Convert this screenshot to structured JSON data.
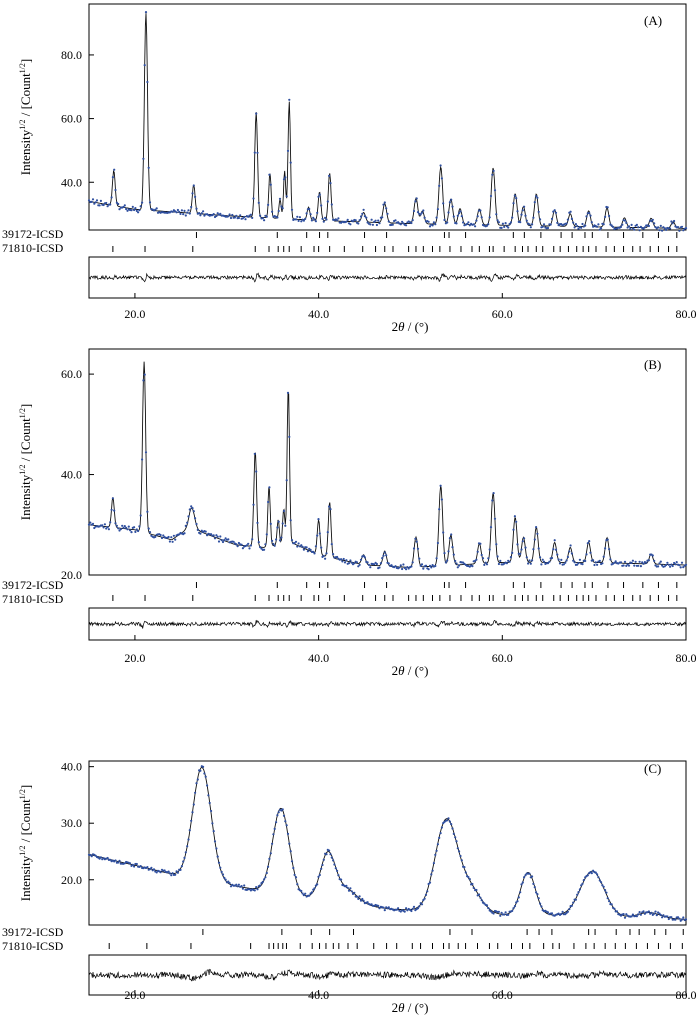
{
  "chart_data": [
    {
      "type": "line",
      "panel_label": "(A)",
      "ylabel_main": "Intensity",
      "ylabel_sup1": "1/2",
      "ylabel_mid": " / [Count",
      "ylabel_sup2": "1/2",
      "ylabel_end": "]",
      "xlabel_theta_prefix": "2",
      "xlabel_theta": "θ",
      "xlabel_unit": " / (°)",
      "xlim": [
        15,
        80
      ],
      "ylim": [
        25,
        96
      ],
      "yticks": [
        40.0,
        60.0,
        80.0
      ],
      "ytick_labels": [
        "40.0",
        "60.0",
        "80.0"
      ],
      "xticks": [
        20,
        40,
        60,
        80
      ],
      "xtick_labels": [
        "20.0",
        "40.0",
        "60.0",
        "80.0"
      ],
      "baseline": [
        [
          15,
          34
        ],
        [
          20,
          31.5
        ],
        [
          25,
          30.5
        ],
        [
          30,
          29.5
        ],
        [
          40,
          28
        ],
        [
          50,
          27
        ],
        [
          60,
          26.5
        ],
        [
          70,
          26
        ],
        [
          80,
          25.5
        ]
      ],
      "peaks": [
        [
          17.7,
          11,
          0.15
        ],
        [
          21.2,
          62,
          0.17
        ],
        [
          26.4,
          9,
          0.15
        ],
        [
          33.2,
          33,
          0.15
        ],
        [
          34.7,
          14,
          0.13
        ],
        [
          35.8,
          6,
          0.12
        ],
        [
          36.3,
          15,
          0.12
        ],
        [
          36.8,
          37,
          0.13
        ],
        [
          38.9,
          4,
          0.15
        ],
        [
          40.1,
          9,
          0.15
        ],
        [
          41.2,
          15,
          0.15
        ],
        [
          44.9,
          3,
          0.2
        ],
        [
          47.2,
          6,
          0.2
        ],
        [
          50.6,
          8,
          0.2
        ],
        [
          51.3,
          4,
          0.2
        ],
        [
          53.3,
          18,
          0.2
        ],
        [
          54.4,
          8,
          0.2
        ],
        [
          55.4,
          5,
          0.2
        ],
        [
          57.5,
          5,
          0.2
        ],
        [
          59.0,
          18,
          0.2
        ],
        [
          61.4,
          10,
          0.2
        ],
        [
          62.3,
          6,
          0.2
        ],
        [
          63.7,
          10,
          0.2
        ],
        [
          65.7,
          5,
          0.2
        ],
        [
          67.4,
          4,
          0.2
        ],
        [
          69.4,
          5,
          0.2
        ],
        [
          71.4,
          6,
          0.2
        ],
        [
          73.3,
          3,
          0.2
        ],
        [
          76.2,
          3,
          0.2
        ],
        [
          78.6,
          2,
          0.2
        ]
      ],
      "phases": [
        {
          "name": "39172-ICSD",
          "positions": [
            26.7,
            35.5,
            38.7,
            40.1,
            41.0,
            45.0,
            47.4,
            53.7,
            54.2,
            56.0,
            61.2,
            62.4,
            64.2,
            66.4,
            67.6,
            69.0,
            69.8,
            71.5,
            73.2,
            75.3,
            77.0,
            79.0
          ]
        },
        {
          "name": "71810-ICSD",
          "positions": [
            17.6,
            21.1,
            26.3,
            33.1,
            34.6,
            35.6,
            36.2,
            36.8,
            38.1,
            39.5,
            40.0,
            41.2,
            42.8,
            44.8,
            46.2,
            47.2,
            48.1,
            49.8,
            50.6,
            51.4,
            52.4,
            53.2,
            54.3,
            55.5,
            56.7,
            57.5,
            58.6,
            59.0,
            60.2,
            61.4,
            62.2,
            62.8,
            63.7,
            64.4,
            65.6,
            66.3,
            67.2,
            68.1,
            68.8,
            69.4,
            70.2,
            71.3,
            72.2,
            73.2,
            74.2,
            75.0,
            76.1,
            77.0,
            78.1,
            79.0
          ]
        }
      ]
    },
    {
      "type": "line",
      "panel_label": "(B)",
      "ylabel_main": "Intensity",
      "ylabel_sup1": "1/2",
      "ylabel_mid": " / [Count",
      "ylabel_sup2": "1/2",
      "ylabel_end": "]",
      "xlabel_theta_prefix": "2",
      "xlabel_theta": "θ",
      "xlabel_unit": " / (°)",
      "xlim": [
        15,
        80
      ],
      "ylim": [
        20,
        65
      ],
      "yticks": [
        20.0,
        40.0,
        60.0
      ],
      "ytick_labels": [
        "20.0",
        "40.0",
        "60.0"
      ],
      "xticks": [
        20,
        40,
        60,
        80
      ],
      "xtick_labels": [
        "20.0",
        "40.0",
        "60.0",
        "80.0"
      ],
      "baseline": [
        [
          15,
          30
        ],
        [
          20,
          29
        ],
        [
          24,
          27
        ],
        [
          26,
          29.5
        ],
        [
          28,
          28
        ],
        [
          31,
          26
        ],
        [
          34,
          25.5
        ],
        [
          37,
          26.5
        ],
        [
          40,
          24
        ],
        [
          45,
          22
        ],
        [
          50,
          21.5
        ],
        [
          55,
          22
        ],
        [
          60,
          22.5
        ],
        [
          70,
          22.5
        ],
        [
          80,
          22
        ]
      ],
      "peaks": [
        [
          17.6,
          6,
          0.15
        ],
        [
          21.0,
          34,
          0.17
        ],
        [
          26.2,
          4,
          0.3
        ],
        [
          33.1,
          19,
          0.15
        ],
        [
          34.6,
          12,
          0.13
        ],
        [
          35.6,
          5,
          0.12
        ],
        [
          36.2,
          7,
          0.12
        ],
        [
          36.7,
          31,
          0.13
        ],
        [
          40.0,
          7,
          0.15
        ],
        [
          41.2,
          11,
          0.15
        ],
        [
          44.9,
          2,
          0.2
        ],
        [
          47.2,
          3,
          0.2
        ],
        [
          50.6,
          6,
          0.2
        ],
        [
          53.3,
          16,
          0.2
        ],
        [
          54.4,
          6,
          0.2
        ],
        [
          57.5,
          4,
          0.2
        ],
        [
          59.0,
          14,
          0.2
        ],
        [
          61.4,
          9,
          0.2
        ],
        [
          62.3,
          5,
          0.2
        ],
        [
          63.7,
          7,
          0.2
        ],
        [
          65.7,
          4,
          0.2
        ],
        [
          67.4,
          3,
          0.2
        ],
        [
          69.4,
          4,
          0.2
        ],
        [
          71.4,
          5,
          0.2
        ],
        [
          76.2,
          2,
          0.2
        ]
      ],
      "phases": [
        {
          "name": "39172-ICSD",
          "positions": [
            26.7,
            35.5,
            38.7,
            40.1,
            41.0,
            45.0,
            47.4,
            53.7,
            54.2,
            56.0,
            61.2,
            62.4,
            64.2,
            66.4,
            67.6,
            69.0,
            69.8,
            71.5,
            73.2,
            75.3,
            77.0,
            79.0
          ]
        },
        {
          "name": "71810-ICSD",
          "positions": [
            17.6,
            21.1,
            26.3,
            33.1,
            34.6,
            35.6,
            36.2,
            36.8,
            38.1,
            39.5,
            40.0,
            41.2,
            42.8,
            44.8,
            46.2,
            47.2,
            48.1,
            49.8,
            50.6,
            51.4,
            52.4,
            53.2,
            54.3,
            55.5,
            56.7,
            57.5,
            58.6,
            59.0,
            60.2,
            61.4,
            62.2,
            62.8,
            63.7,
            64.4,
            65.6,
            66.3,
            67.2,
            68.1,
            68.8,
            69.4,
            70.2,
            71.3,
            72.2,
            73.2,
            74.2,
            75.0,
            76.1,
            77.0,
            78.1,
            79.0
          ]
        }
      ]
    },
    {
      "type": "line",
      "panel_label": "(C)",
      "ylabel_main": "Intensity",
      "ylabel_sup1": "1/2",
      "ylabel_mid": " / [Count",
      "ylabel_sup2": "1/2",
      "ylabel_end": "]",
      "xlabel_theta_prefix": "2",
      "xlabel_theta": "θ",
      "xlabel_unit": " / (°)",
      "xlim": [
        15,
        80
      ],
      "ylim": [
        12,
        41
      ],
      "yticks": [
        20.0,
        30.0,
        40.0
      ],
      "ytick_labels": [
        "20.0",
        "30.0",
        "40.0"
      ],
      "xticks": [
        20,
        40,
        60,
        80
      ],
      "xtick_labels": [
        "20.0",
        "40.0",
        "60.0",
        "80.0"
      ],
      "baseline": [
        [
          15,
          24.5
        ],
        [
          18,
          23.3
        ],
        [
          21,
          22.2
        ],
        [
          24,
          21
        ],
        [
          28,
          19.6
        ],
        [
          32,
          18.6
        ],
        [
          36,
          17.6
        ],
        [
          40,
          16.6
        ],
        [
          44,
          15.6
        ],
        [
          48,
          14.8
        ],
        [
          52,
          14.5
        ],
        [
          56,
          14.3
        ],
        [
          60,
          13.8
        ],
        [
          64,
          13.8
        ],
        [
          68,
          13.6
        ],
        [
          72,
          13.4
        ],
        [
          76,
          13.2
        ],
        [
          80,
          13
        ]
      ],
      "peaks": [
        [
          27.3,
          20,
          1.0
        ],
        [
          35.9,
          15,
          0.9
        ],
        [
          41.0,
          8,
          0.8
        ],
        [
          43.0,
          2.5,
          1.2
        ],
        [
          53.9,
          16,
          1.2
        ],
        [
          56.5,
          4,
          1.2
        ],
        [
          62.8,
          7.5,
          0.8
        ],
        [
          69.8,
          8,
          1.3
        ],
        [
          76,
          1,
          1.2
        ]
      ],
      "phases": [
        {
          "name": "39172-ICSD",
          "positions": [
            27.4,
            36.0,
            39.2,
            41.2,
            43.8,
            54.3,
            56.7,
            62.7,
            64.0,
            65.4,
            69.4,
            70.1,
            72.4,
            73.9,
            74.9,
            76.6,
            77.8,
            79.7
          ]
        },
        {
          "name": "71810-ICSD",
          "positions": [
            17.2,
            21.3,
            26.1,
            32.6,
            34.6,
            35.1,
            35.6,
            36.1,
            36.5,
            38.0,
            39.3,
            40.1,
            40.8,
            41.6,
            42.2,
            43.2,
            44.2,
            46.0,
            47.4,
            48.5,
            50.2,
            51.1,
            52.4,
            53.6,
            54.2,
            55.2,
            56.0,
            57.3,
            58.6,
            59.5,
            61.0,
            62.2,
            63.0,
            64.5,
            65.5,
            66.2,
            67.8,
            69.1,
            70.0,
            71.2,
            72.3,
            73.4,
            74.6,
            75.8,
            77.0,
            78.3,
            79.6
          ]
        }
      ]
    }
  ]
}
